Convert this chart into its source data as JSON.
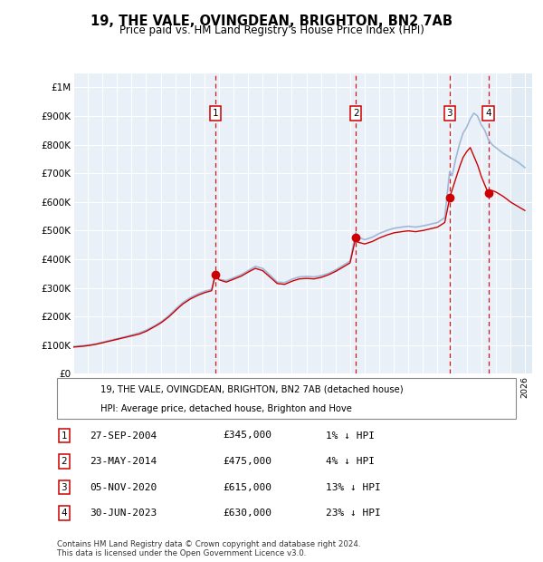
{
  "title": "19, THE VALE, OVINGDEAN, BRIGHTON, BN2 7AB",
  "subtitle": "Price paid vs. HM Land Registry's House Price Index (HPI)",
  "ylabel_ticks": [
    "£0",
    "£100K",
    "£200K",
    "£300K",
    "£400K",
    "£500K",
    "£600K",
    "£700K",
    "£800K",
    "£900K",
    "£1M"
  ],
  "ytick_values": [
    0,
    100000,
    200000,
    300000,
    400000,
    500000,
    600000,
    700000,
    800000,
    900000,
    1000000
  ],
  "ylim": [
    0,
    1050000
  ],
  "hpi_color": "#a0b8d8",
  "price_color": "#cc0000",
  "dashed_line_color": "#cc0000",
  "purchase_events": [
    {
      "num": 1,
      "date_str": "27-SEP-2004",
      "date_x": 2004.74,
      "price": 345000,
      "hpi_pct": "1% ↓ HPI"
    },
    {
      "num": 2,
      "date_str": "23-MAY-2014",
      "date_x": 2014.39,
      "price": 475000,
      "hpi_pct": "4% ↓ HPI"
    },
    {
      "num": 3,
      "date_str": "05-NOV-2020",
      "date_x": 2020.84,
      "price": 615000,
      "hpi_pct": "13% ↓ HPI"
    },
    {
      "num": 4,
      "date_str": "30-JUN-2023",
      "date_x": 2023.49,
      "price": 630000,
      "hpi_pct": "23% ↓ HPI"
    }
  ],
  "legend_label_red": "19, THE VALE, OVINGDEAN, BRIGHTON, BN2 7AB (detached house)",
  "legend_label_blue": "HPI: Average price, detached house, Brighton and Hove",
  "footer": "Contains HM Land Registry data © Crown copyright and database right 2024.\nThis data is licensed under the Open Government Licence v3.0.",
  "hatch_start_x": 2025.0,
  "xmin": 1995.0,
  "xmax": 2026.5,
  "background_color": "#eaf0f8",
  "hpi_keypoints": [
    [
      1995.0,
      95000
    ],
    [
      1995.5,
      97000
    ],
    [
      1996.0,
      100000
    ],
    [
      1996.5,
      104000
    ],
    [
      1997.0,
      110000
    ],
    [
      1997.5,
      116000
    ],
    [
      1998.0,
      122000
    ],
    [
      1998.5,
      128000
    ],
    [
      1999.0,
      135000
    ],
    [
      1999.5,
      142000
    ],
    [
      2000.0,
      152000
    ],
    [
      2000.5,
      165000
    ],
    [
      2001.0,
      180000
    ],
    [
      2001.5,
      200000
    ],
    [
      2002.0,
      225000
    ],
    [
      2002.5,
      248000
    ],
    [
      2003.0,
      265000
    ],
    [
      2003.5,
      278000
    ],
    [
      2004.0,
      288000
    ],
    [
      2004.5,
      295000
    ],
    [
      2004.74,
      348000
    ],
    [
      2005.0,
      330000
    ],
    [
      2005.5,
      325000
    ],
    [
      2006.0,
      335000
    ],
    [
      2006.5,
      345000
    ],
    [
      2007.0,
      360000
    ],
    [
      2007.5,
      375000
    ],
    [
      2008.0,
      368000
    ],
    [
      2008.5,
      345000
    ],
    [
      2009.0,
      320000
    ],
    [
      2009.5,
      318000
    ],
    [
      2010.0,
      330000
    ],
    [
      2010.5,
      338000
    ],
    [
      2011.0,
      340000
    ],
    [
      2011.5,
      338000
    ],
    [
      2012.0,
      342000
    ],
    [
      2012.5,
      350000
    ],
    [
      2013.0,
      362000
    ],
    [
      2013.5,
      378000
    ],
    [
      2014.0,
      393000
    ],
    [
      2014.39,
      495000
    ],
    [
      2014.5,
      478000
    ],
    [
      2015.0,
      468000
    ],
    [
      2015.5,
      476000
    ],
    [
      2016.0,
      490000
    ],
    [
      2016.5,
      500000
    ],
    [
      2017.0,
      508000
    ],
    [
      2017.5,
      512000
    ],
    [
      2018.0,
      515000
    ],
    [
      2018.5,
      512000
    ],
    [
      2019.0,
      516000
    ],
    [
      2019.5,
      522000
    ],
    [
      2020.0,
      528000
    ],
    [
      2020.5,
      545000
    ],
    [
      2020.84,
      708000
    ],
    [
      2021.0,
      690000
    ],
    [
      2021.25,
      750000
    ],
    [
      2021.5,
      800000
    ],
    [
      2021.75,
      840000
    ],
    [
      2022.0,
      860000
    ],
    [
      2022.25,
      890000
    ],
    [
      2022.5,
      910000
    ],
    [
      2022.75,
      900000
    ],
    [
      2023.0,
      870000
    ],
    [
      2023.25,
      850000
    ],
    [
      2023.49,
      818000
    ],
    [
      2023.75,
      800000
    ],
    [
      2024.0,
      790000
    ],
    [
      2024.5,
      770000
    ],
    [
      2025.0,
      755000
    ],
    [
      2025.5,
      740000
    ],
    [
      2026.0,
      720000
    ]
  ],
  "price_keypoints": [
    [
      1995.0,
      93000
    ],
    [
      1995.5,
      95000
    ],
    [
      1996.0,
      98000
    ],
    [
      1996.5,
      102000
    ],
    [
      1997.0,
      108000
    ],
    [
      1997.5,
      114000
    ],
    [
      1998.0,
      120000
    ],
    [
      1998.5,
      126000
    ],
    [
      1999.0,
      132000
    ],
    [
      1999.5,
      138000
    ],
    [
      2000.0,
      148000
    ],
    [
      2000.5,
      162000
    ],
    [
      2001.0,
      177000
    ],
    [
      2001.5,
      196000
    ],
    [
      2002.0,
      220000
    ],
    [
      2002.5,
      243000
    ],
    [
      2003.0,
      260000
    ],
    [
      2003.5,
      273000
    ],
    [
      2004.0,
      283000
    ],
    [
      2004.5,
      290000
    ],
    [
      2004.74,
      345000
    ],
    [
      2005.0,
      328000
    ],
    [
      2005.5,
      320000
    ],
    [
      2006.0,
      330000
    ],
    [
      2006.5,
      340000
    ],
    [
      2007.0,
      355000
    ],
    [
      2007.5,
      368000
    ],
    [
      2008.0,
      360000
    ],
    [
      2008.5,
      338000
    ],
    [
      2009.0,
      315000
    ],
    [
      2009.5,
      312000
    ],
    [
      2010.0,
      323000
    ],
    [
      2010.5,
      331000
    ],
    [
      2011.0,
      333000
    ],
    [
      2011.5,
      331000
    ],
    [
      2012.0,
      336000
    ],
    [
      2012.5,
      345000
    ],
    [
      2013.0,
      357000
    ],
    [
      2013.5,
      372000
    ],
    [
      2014.0,
      387000
    ],
    [
      2014.39,
      475000
    ],
    [
      2014.5,
      460000
    ],
    [
      2015.0,
      453000
    ],
    [
      2015.5,
      461000
    ],
    [
      2016.0,
      474000
    ],
    [
      2016.5,
      484000
    ],
    [
      2017.0,
      492000
    ],
    [
      2017.5,
      496000
    ],
    [
      2018.0,
      499000
    ],
    [
      2018.5,
      496000
    ],
    [
      2019.0,
      500000
    ],
    [
      2019.5,
      506000
    ],
    [
      2020.0,
      512000
    ],
    [
      2020.5,
      528000
    ],
    [
      2020.84,
      615000
    ],
    [
      2021.0,
      640000
    ],
    [
      2021.25,
      680000
    ],
    [
      2021.5,
      720000
    ],
    [
      2021.75,
      755000
    ],
    [
      2022.0,
      775000
    ],
    [
      2022.25,
      790000
    ],
    [
      2022.5,
      760000
    ],
    [
      2022.75,
      730000
    ],
    [
      2023.0,
      690000
    ],
    [
      2023.25,
      660000
    ],
    [
      2023.49,
      630000
    ],
    [
      2023.75,
      640000
    ],
    [
      2024.0,
      635000
    ],
    [
      2024.5,
      620000
    ],
    [
      2025.0,
      600000
    ],
    [
      2025.5,
      585000
    ],
    [
      2026.0,
      570000
    ]
  ]
}
